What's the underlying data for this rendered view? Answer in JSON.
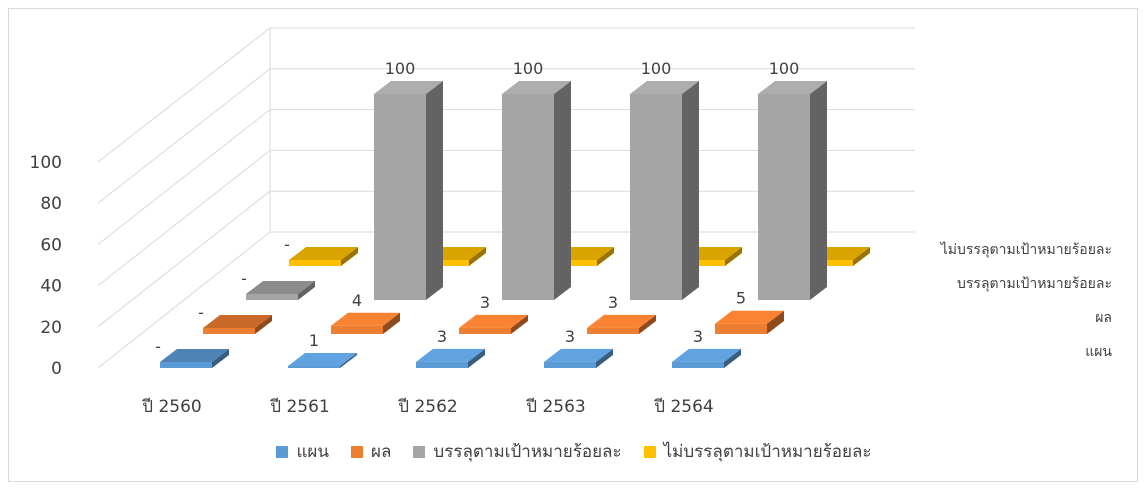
{
  "chart_data": {
    "type": "bar",
    "categories": [
      "ปี 2560",
      "ปี 2561",
      "ปี 2562",
      "ปี 2563",
      "ปี 2564"
    ],
    "series": [
      {
        "name": "แผน",
        "values": [
          0,
          1,
          3,
          3,
          3
        ],
        "labels": [
          "-",
          "1",
          "3",
          "3",
          "3"
        ],
        "color": "#5b9bd5"
      },
      {
        "name": "ผล",
        "values": [
          0,
          4,
          3,
          3,
          5
        ],
        "labels": [
          "-",
          "4",
          "3",
          "3",
          "5"
        ],
        "color": "#ed7d31"
      },
      {
        "name": "บรรลุตามเป้าหมายร้อยละ",
        "values": [
          0,
          100,
          100,
          100,
          100
        ],
        "labels": [
          "-",
          "100",
          "100",
          "100",
          "100"
        ],
        "color": "#a5a5a5"
      },
      {
        "name": "ไม่บรรลุตามเป้าหมายร้อยละ",
        "values": [
          0,
          0,
          0,
          0,
          0
        ],
        "labels": [
          "-",
          "-",
          "-",
          "-",
          "-"
        ],
        "color": "#ffc000"
      }
    ],
    "ytick_labels": [
      "0",
      "20",
      "40",
      "60",
      "80",
      "100"
    ],
    "ylim": [
      0,
      100
    ],
    "grid": true,
    "legend_position": "bottom",
    "style": "3d-column"
  }
}
